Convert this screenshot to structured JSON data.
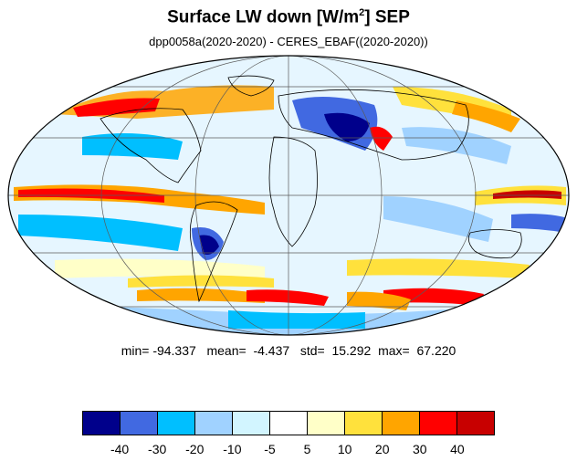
{
  "header": {
    "title_prefix": "Surface LW down [W/m",
    "title_sup": "2",
    "title_suffix": "]  SEP",
    "subtitle": "dpp0058a(2020-2020) - CERES_EBAF((2020-2020))"
  },
  "stats": {
    "min_label": "min=",
    "min": "-94.337",
    "mean_label": "mean=",
    "mean": "-4.437",
    "std_label": "std=",
    "std": "15.292",
    "max_label": "max=",
    "max": "67.220"
  },
  "colorbar": {
    "colors": [
      "#00008b",
      "#4169e1",
      "#00bfff",
      "#a0d2ff",
      "#d2f5ff",
      "#ffffff",
      "#ffffc8",
      "#ffe13c",
      "#ffa500",
      "#ff0000",
      "#c80000"
    ],
    "labels": [
      "-40",
      "-30",
      "-20",
      "-10",
      "-5",
      "5",
      "10",
      "20",
      "30",
      "40"
    ]
  },
  "map": {
    "projection": "mollweide",
    "graticule": true,
    "coastlines": true
  }
}
